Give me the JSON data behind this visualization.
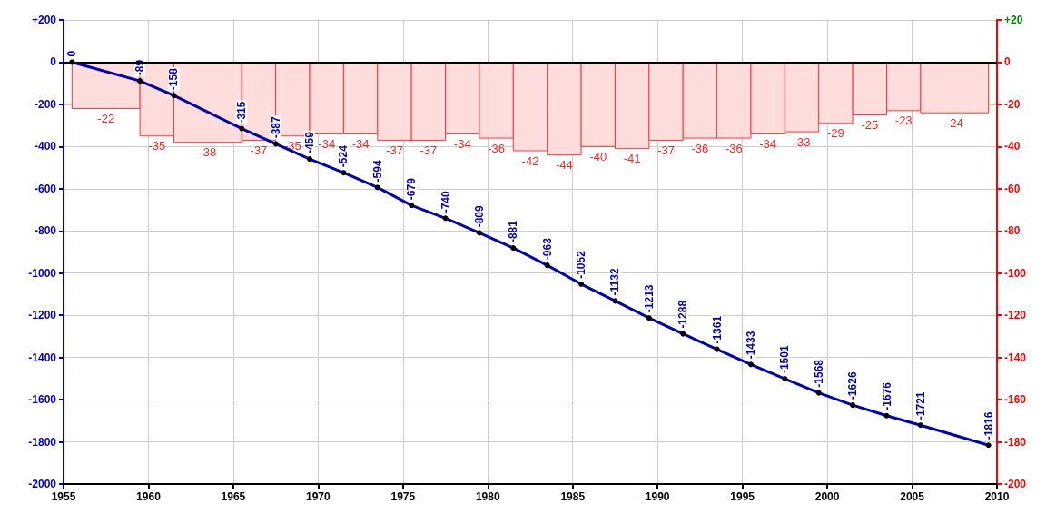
{
  "chart_data": {
    "type": "line",
    "xlim": [
      1955,
      2010
    ],
    "xticks": [
      1955,
      1960,
      1965,
      1970,
      1975,
      1980,
      1985,
      1990,
      1995,
      2000,
      2005,
      2010
    ],
    "ylim": [
      -2000,
      200
    ],
    "yticks": [
      -2000,
      -1800,
      -1600,
      -1400,
      -1200,
      -1000,
      -800,
      -600,
      -400,
      -200,
      0,
      {
        "value": 200,
        "label": "+200"
      }
    ],
    "y2lim": [
      -200,
      20
    ],
    "y2ticks": [
      -200,
      -180,
      -160,
      -140,
      -120,
      -100,
      -80,
      -60,
      -40,
      -20,
      0,
      {
        "value": 20,
        "label": "+20"
      }
    ],
    "grid": true,
    "marker": "circle",
    "line_style": "solid",
    "data_labels": true,
    "ref_lines": [
      {
        "axis": "y",
        "value": 0,
        "color": "#000000"
      }
    ],
    "series": [
      {
        "type": "histogram",
        "axis": "y2",
        "color": "#ffdddd",
        "bins": [
          1955.5,
          1959.5,
          1961.5,
          1965.5,
          1967.5,
          1969.5,
          1971.5,
          1973.5,
          1975.5,
          1977.5,
          1979.5,
          1981.5,
          1983.5,
          1985.5,
          1987.5,
          1989.5,
          1991.5,
          1993.5,
          1995.5,
          1997.5,
          1999.5,
          2001.5,
          2003.5,
          2005.5,
          2009.5
        ],
        "values": [
          -22,
          -35,
          -38,
          -37,
          -35,
          -34,
          -34,
          -37,
          -37,
          -34,
          -36,
          -42,
          -44,
          -40,
          -41,
          -37,
          -36,
          -36,
          -34,
          -33,
          -29,
          -25,
          -23,
          -24
        ]
      },
      {
        "color": "#0000bb",
        "x": [
          1955.5,
          1959.5,
          1961.5,
          1965.5,
          1967.5,
          1969.5,
          1971.5,
          1973.5,
          1975.5,
          1977.5,
          1979.5,
          1981.5,
          1983.5,
          1985.5,
          1987.5,
          1989.5,
          1991.5,
          1993.5,
          1995.5,
          1997.5,
          1999.5,
          2001.5,
          2003.5,
          2005.5,
          2009.5
        ],
        "values": [
          0,
          -89,
          -158,
          -315,
          -387,
          -459,
          -524,
          -594,
          -679,
          -740,
          -809,
          -881,
          -963,
          -1052,
          -1132,
          -1213,
          -1288,
          -1361,
          -1433,
          -1501,
          -1568,
          -1626,
          -1676,
          -1721,
          -1816
        ]
      }
    ]
  }
}
